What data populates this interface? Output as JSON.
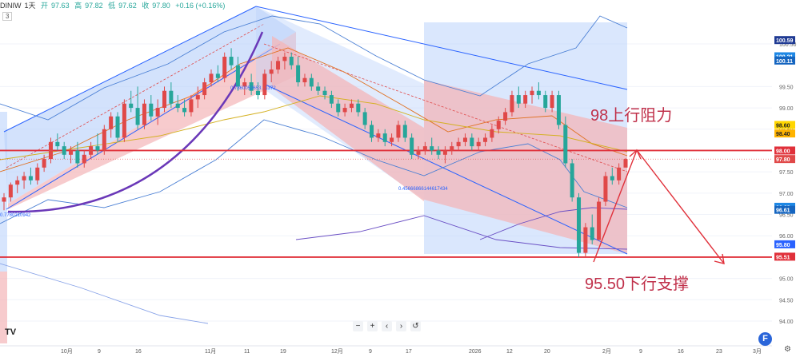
{
  "header": {
    "symbol": "DINIW",
    "interval": "1天",
    "open_label": "开",
    "open": "97.63",
    "high_label": "高",
    "high": "97.82",
    "low_label": "低",
    "low": "97.62",
    "close_label": "收",
    "close": "97.80",
    "change": "+0.16 (+0.16%)",
    "badge": "3"
  },
  "annotations": {
    "resistance_label": "98上行阻力",
    "support_label": "95.50下行支撑",
    "fib_label_top": "0.7860052653...1372",
    "fib_label_mid": "0.45666866144617434",
    "fib_label_left": "0.7780210942"
  },
  "toolbar": {
    "minus": "−",
    "plus": "+",
    "back": "‹",
    "forward": "›",
    "reset": "↺"
  },
  "branding": {
    "tv_logo": "TV",
    "f_logo": "F",
    "settings_icon": "⚙"
  },
  "colors": {
    "up": "#e04848",
    "down": "#26a69a",
    "channel_blue": "#2962ff",
    "channel_fill_blue": "#5b8def",
    "channel_fill_red": "#f08080",
    "resistance_line": "#e0303a",
    "curve_purple": "#6a38b8"
  },
  "chart_data": {
    "type": "candlestick",
    "title": "",
    "y_ticks": [
      {
        "label": "100.50",
        "value": 100.5
      },
      {
        "label": "99.50",
        "value": 99.5
      },
      {
        "label": "99.00",
        "value": 99.0
      },
      {
        "label": "98.50",
        "value": 98.5
      },
      {
        "label": "98.00",
        "value": 98.0
      },
      {
        "label": "97.50",
        "value": 97.5
      },
      {
        "label": "97.00",
        "value": 97.0
      },
      {
        "label": "96.50",
        "value": 96.5
      },
      {
        "label": "96.00",
        "value": 96.0
      },
      {
        "label": "95.00",
        "value": 95.0
      },
      {
        "label": "94.50",
        "value": 94.5
      },
      {
        "label": "94.00",
        "value": 94.0
      }
    ],
    "price_badges": [
      {
        "label": "100.59",
        "value": 100.59,
        "color": "#1f3a93"
      },
      {
        "label": "100.21",
        "value": 100.21,
        "color": "#1e88e5"
      },
      {
        "label": "100.11",
        "value": 100.11,
        "color": "#1565c0"
      },
      {
        "label": "98.60",
        "value": 98.6,
        "color": "#ffd600"
      },
      {
        "label": "98.40",
        "value": 98.4,
        "color": "#ffb300"
      },
      {
        "label": "98.00",
        "value": 98.0,
        "color": "#e0303a"
      },
      {
        "label": "97.80",
        "value": 97.8,
        "color": "#e04848"
      },
      {
        "label": "96.68",
        "value": 96.68,
        "color": "#1e88e5"
      },
      {
        "label": "96.61",
        "value": 96.61,
        "color": "#1565c0"
      },
      {
        "label": "95.80",
        "value": 95.8,
        "color": "#2962ff"
      },
      {
        "label": "95.51",
        "value": 95.51,
        "color": "#e0303a"
      }
    ],
    "x_ticks": [
      "10月",
      "9",
      "16",
      "11月",
      "11",
      "19",
      "12月",
      "9",
      "17",
      "2026",
      "12",
      "20",
      "2月",
      "9",
      "16",
      "23",
      "3月"
    ],
    "resistance": 98.0,
    "support": 95.5,
    "candles": [
      [
        96.8,
        97.0,
        96.6,
        96.9
      ],
      [
        96.9,
        97.25,
        96.8,
        97.2
      ],
      [
        97.2,
        97.4,
        97.0,
        97.3
      ],
      [
        97.3,
        97.5,
        97.1,
        97.4
      ],
      [
        97.4,
        97.6,
        97.2,
        97.3
      ],
      [
        97.3,
        97.7,
        97.2,
        97.6
      ],
      [
        97.6,
        97.9,
        97.5,
        97.8
      ],
      [
        97.8,
        98.3,
        97.7,
        98.2
      ],
      [
        98.2,
        98.4,
        98.0,
        98.1
      ],
      [
        98.1,
        98.2,
        97.8,
        97.9
      ],
      [
        97.9,
        98.1,
        97.7,
        98.0
      ],
      [
        98.0,
        98.2,
        97.6,
        97.7
      ],
      [
        97.7,
        98.0,
        97.6,
        97.9
      ],
      [
        97.9,
        98.2,
        97.8,
        98.1
      ],
      [
        98.1,
        98.4,
        97.9,
        98.0
      ],
      [
        98.0,
        98.6,
        97.9,
        98.5
      ],
      [
        98.5,
        98.9,
        98.3,
        98.8
      ],
      [
        98.8,
        98.9,
        98.2,
        98.3
      ],
      [
        98.3,
        99.2,
        98.2,
        99.1
      ],
      [
        99.1,
        99.4,
        98.9,
        99.0
      ],
      [
        99.0,
        99.5,
        98.5,
        98.6
      ],
      [
        98.6,
        99.2,
        98.5,
        99.1
      ],
      [
        99.1,
        99.3,
        98.7,
        98.8
      ],
      [
        98.8,
        99.2,
        98.6,
        99.0
      ],
      [
        99.0,
        99.5,
        98.9,
        99.4
      ],
      [
        99.4,
        99.6,
        99.0,
        99.1
      ],
      [
        99.1,
        99.3,
        98.9,
        99.0
      ],
      [
        99.0,
        99.2,
        98.8,
        98.9
      ],
      [
        98.9,
        99.3,
        98.8,
        99.2
      ],
      [
        99.2,
        99.5,
        99.0,
        99.3
      ],
      [
        99.3,
        99.7,
        99.2,
        99.6
      ],
      [
        99.6,
        99.9,
        99.5,
        99.8
      ],
      [
        99.8,
        100.0,
        99.6,
        99.7
      ],
      [
        99.7,
        100.3,
        99.6,
        100.2
      ],
      [
        100.2,
        100.4,
        99.9,
        100.0
      ],
      [
        100.0,
        100.2,
        99.4,
        99.5
      ],
      [
        99.5,
        99.7,
        99.3,
        99.6
      ],
      [
        99.6,
        99.8,
        99.3,
        99.4
      ],
      [
        99.4,
        99.6,
        99.2,
        99.3
      ],
      [
        99.3,
        99.9,
        99.2,
        99.8
      ],
      [
        99.8,
        100.1,
        99.6,
        99.9
      ],
      [
        99.9,
        100.2,
        99.8,
        100.1
      ],
      [
        100.1,
        100.3,
        99.9,
        100.2
      ],
      [
        100.2,
        100.3,
        99.9,
        100.0
      ],
      [
        100.0,
        100.2,
        99.5,
        99.6
      ],
      [
        99.6,
        99.8,
        99.5,
        99.7
      ],
      [
        99.7,
        99.8,
        99.4,
        99.5
      ],
      [
        99.5,
        99.6,
        99.3,
        99.4
      ],
      [
        99.4,
        99.5,
        99.2,
        99.3
      ],
      [
        99.3,
        99.4,
        99.0,
        99.1
      ],
      [
        99.1,
        99.2,
        98.8,
        98.9
      ],
      [
        98.9,
        99.1,
        98.8,
        99.0
      ],
      [
        99.0,
        99.2,
        98.9,
        99.1
      ],
      [
        99.1,
        99.2,
        98.8,
        98.9
      ],
      [
        98.9,
        99.0,
        98.5,
        98.6
      ],
      [
        98.6,
        98.7,
        98.2,
        98.3
      ],
      [
        98.3,
        98.5,
        98.2,
        98.4
      ],
      [
        98.4,
        98.5,
        98.1,
        98.2
      ],
      [
        98.2,
        98.4,
        98.1,
        98.3
      ],
      [
        98.3,
        98.7,
        98.2,
        98.6
      ],
      [
        98.6,
        98.7,
        98.2,
        98.3
      ],
      [
        98.3,
        98.4,
        97.8,
        97.9
      ],
      [
        97.9,
        98.1,
        97.8,
        98.0
      ],
      [
        98.0,
        98.2,
        97.9,
        98.1
      ],
      [
        98.1,
        98.3,
        97.9,
        98.0
      ],
      [
        98.0,
        98.1,
        97.8,
        97.9
      ],
      [
        97.9,
        98.1,
        97.7,
        98.0
      ],
      [
        98.0,
        98.2,
        97.9,
        98.1
      ],
      [
        98.1,
        98.3,
        98.0,
        98.2
      ],
      [
        98.2,
        98.4,
        98.1,
        98.3
      ],
      [
        98.3,
        98.4,
        98.0,
        98.1
      ],
      [
        98.1,
        98.3,
        98.0,
        98.2
      ],
      [
        98.2,
        98.4,
        98.1,
        98.3
      ],
      [
        98.3,
        98.6,
        98.2,
        98.5
      ],
      [
        98.5,
        98.8,
        98.4,
        98.7
      ],
      [
        98.7,
        99.0,
        98.6,
        98.9
      ],
      [
        98.9,
        99.4,
        98.8,
        99.3
      ],
      [
        99.3,
        99.5,
        99.0,
        99.1
      ],
      [
        99.1,
        99.4,
        99.0,
        99.3
      ],
      [
        99.3,
        99.5,
        99.1,
        99.4
      ],
      [
        99.4,
        99.6,
        99.2,
        99.3
      ],
      [
        99.3,
        99.4,
        98.9,
        99.0
      ],
      [
        99.0,
        99.4,
        98.9,
        99.3
      ],
      [
        99.3,
        99.4,
        98.5,
        98.6
      ],
      [
        98.6,
        98.8,
        97.6,
        97.7
      ],
      [
        97.7,
        97.8,
        96.8,
        96.9
      ],
      [
        96.9,
        97.0,
        95.5,
        95.6
      ],
      [
        95.6,
        96.3,
        95.5,
        96.2
      ],
      [
        96.2,
        96.5,
        95.8,
        95.9
      ],
      [
        95.9,
        96.9,
        95.9,
        96.8
      ],
      [
        96.8,
        97.5,
        96.7,
        97.4
      ],
      [
        97.4,
        97.6,
        97.2,
        97.3
      ],
      [
        97.3,
        97.7,
        97.2,
        97.6
      ],
      [
        97.6,
        97.82,
        97.62,
        97.8
      ]
    ]
  }
}
